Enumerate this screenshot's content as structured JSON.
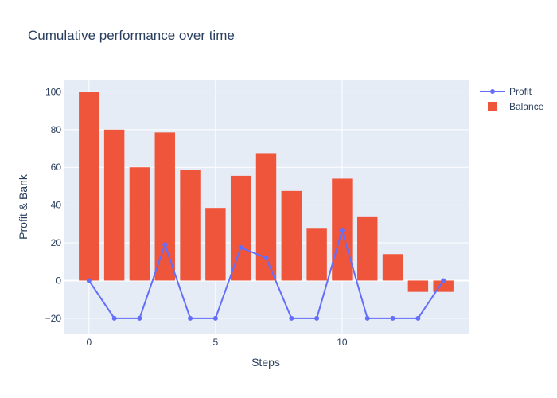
{
  "chart_data": {
    "type": "bar+line",
    "title": "Cumulative performance over time",
    "xlabel": "Steps",
    "ylabel": "Profit & Bank",
    "x": [
      0,
      1,
      2,
      3,
      4,
      5,
      6,
      7,
      8,
      9,
      10,
      11,
      12,
      13,
      14
    ],
    "series": [
      {
        "name": "Profit",
        "type": "line",
        "color": "#636efa",
        "values": [
          0,
          -20,
          -20,
          19,
          -20,
          -20,
          17.5,
          12,
          -20,
          -20,
          26.5,
          -20,
          -20,
          -20,
          0
        ]
      },
      {
        "name": "Balance",
        "type": "bar",
        "color": "#ef553b",
        "values": [
          100,
          80,
          60,
          78.5,
          58.5,
          38.5,
          55.5,
          67.5,
          47.5,
          27.5,
          54,
          34,
          14,
          -6,
          -6
        ]
      }
    ],
    "xlim": [
      -1,
      15
    ],
    "ylim": [
      -28.5,
      106.5
    ],
    "xticks": [
      0,
      5,
      10
    ],
    "yticks": [
      -20,
      0,
      20,
      40,
      60,
      80,
      100
    ],
    "xtick_labels": [
      "0",
      "5",
      "10"
    ],
    "ytick_labels": [
      "−20",
      "0",
      "20",
      "40",
      "60",
      "80",
      "100"
    ],
    "grid": true,
    "legend_position": "top-right",
    "plot_background": "#e5ecf6"
  }
}
